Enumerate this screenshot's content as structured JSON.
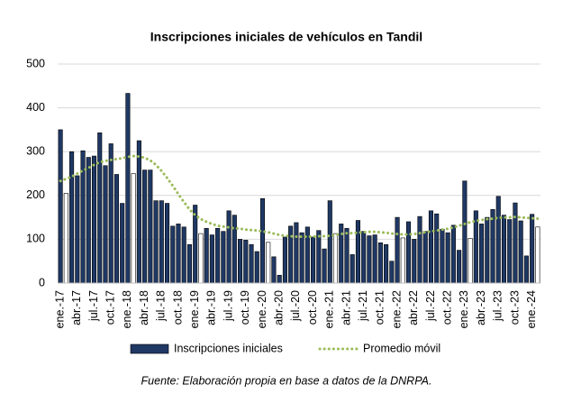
{
  "chart_data": {
    "type": "bar",
    "title": "Inscripciones iniciales de vehículos en Tandil",
    "source": "Fuente: Elaboración propia en base a datos de la DNRPA.",
    "categories": [
      "ene.-17",
      null,
      null,
      "abr.-17",
      null,
      null,
      "jul.-17",
      null,
      null,
      "oct.-17",
      null,
      null,
      "ene.-18",
      null,
      null,
      "abr.-18",
      null,
      null,
      "jul.-18",
      null,
      null,
      "oct.-18",
      null,
      null,
      "ene.-19",
      null,
      null,
      "abr.-19",
      null,
      null,
      "jul.-19",
      null,
      null,
      "oct.-19",
      null,
      null,
      "ene.-20",
      null,
      null,
      "abr.-20",
      null,
      null,
      "jul.-20",
      null,
      null,
      "oct.-20",
      null,
      null,
      "ene.-21",
      null,
      null,
      "abr.-21",
      null,
      null,
      "jul.-21",
      null,
      null,
      "oct.-21",
      null,
      null,
      "ene.-22",
      null,
      null,
      "abr.-22",
      null,
      null,
      "jul.-22",
      null,
      null,
      "oct.-22",
      null,
      null,
      "ene.-23",
      null,
      null,
      "abr.-23",
      null,
      null,
      "jul.-23",
      null,
      null,
      "oct.-23",
      null,
      null,
      "ene.-24",
      null
    ],
    "series": [
      {
        "name": "Inscripciones iniciales",
        "kind": "bar",
        "color": "#1f3864",
        "values": [
          350,
          205,
          300,
          245,
          302,
          287,
          290,
          343,
          268,
          318,
          248,
          182,
          433,
          250,
          325,
          258,
          258,
          188,
          188,
          182,
          130,
          135,
          128,
          88,
          178,
          113,
          125,
          110,
          125,
          118,
          165,
          155,
          100,
          98,
          88,
          72,
          193,
          93,
          60,
          18,
          105,
          130,
          138,
          115,
          128,
          105,
          120,
          78,
          188,
          113,
          135,
          125,
          65,
          143,
          118,
          108,
          110,
          92,
          88,
          50,
          150,
          103,
          140,
          100,
          152,
          118,
          165,
          158,
          123,
          115,
          132,
          75,
          233,
          102,
          165,
          135,
          150,
          168,
          198,
          155,
          145,
          183,
          142,
          62,
          157,
          128
        ],
        "colors": [
          "#1f3864",
          "#ffffff",
          "#1f3864",
          "#1f3864",
          "#1f3864",
          "#1f3864",
          "#1f3864",
          "#1f3864",
          "#1f3864",
          "#1f3864",
          "#1f3864",
          "#1f3864",
          "#1f3864",
          "#ffffff",
          "#1f3864",
          "#1f3864",
          "#1f3864",
          "#1f3864",
          "#1f3864",
          "#1f3864",
          "#1f3864",
          "#1f3864",
          "#1f3864",
          "#1f3864",
          "#1f3864",
          "#ffffff",
          "#1f3864",
          "#1f3864",
          "#1f3864",
          "#1f3864",
          "#1f3864",
          "#1f3864",
          "#1f3864",
          "#1f3864",
          "#1f3864",
          "#1f3864",
          "#1f3864",
          "#ffffff",
          "#1f3864",
          "#1f3864",
          "#1f3864",
          "#1f3864",
          "#1f3864",
          "#1f3864",
          "#1f3864",
          "#1f3864",
          "#1f3864",
          "#1f3864",
          "#1f3864",
          "#ffffff",
          "#1f3864",
          "#1f3864",
          "#1f3864",
          "#1f3864",
          "#1f3864",
          "#1f3864",
          "#1f3864",
          "#1f3864",
          "#1f3864",
          "#1f3864",
          "#1f3864",
          "#ffffff",
          "#1f3864",
          "#1f3864",
          "#1f3864",
          "#1f3864",
          "#1f3864",
          "#1f3864",
          "#1f3864",
          "#1f3864",
          "#1f3864",
          "#1f3864",
          "#1f3864",
          "#ffffff",
          "#1f3864",
          "#1f3864",
          "#1f3864",
          "#1f3864",
          "#1f3864",
          "#1f3864",
          "#1f3864",
          "#1f3864",
          "#1f3864",
          "#1f3864",
          "#1f3864",
          "#ffffff"
        ]
      },
      {
        "name": "Promedio móvil",
        "kind": "line",
        "style": "dotted",
        "color": "#9bbb59",
        "values": [
          233,
          238,
          243,
          250,
          257,
          263,
          270,
          276,
          279,
          281,
          283,
          285,
          288,
          290,
          289,
          286,
          280,
          270,
          256,
          240,
          222,
          203,
          185,
          168,
          155,
          146,
          140,
          135,
          131,
          129,
          127,
          125,
          124,
          122,
          121,
          120,
          118,
          116,
          113,
          110,
          108,
          107,
          106,
          106,
          106,
          106,
          107,
          107,
          108,
          110,
          112,
          114,
          114,
          115,
          116,
          117,
          117,
          116,
          115,
          113,
          112,
          111,
          111,
          112,
          114,
          116,
          118,
          120,
          122,
          124,
          127,
          131,
          135,
          139,
          142,
          144,
          146,
          147,
          149,
          150,
          150,
          151,
          150,
          149,
          148,
          147
        ]
      }
    ],
    "ylim": [
      0,
      500
    ],
    "yticks": [
      0,
      100,
      200,
      300,
      400,
      500
    ],
    "grid": true,
    "legend": "bottom"
  }
}
